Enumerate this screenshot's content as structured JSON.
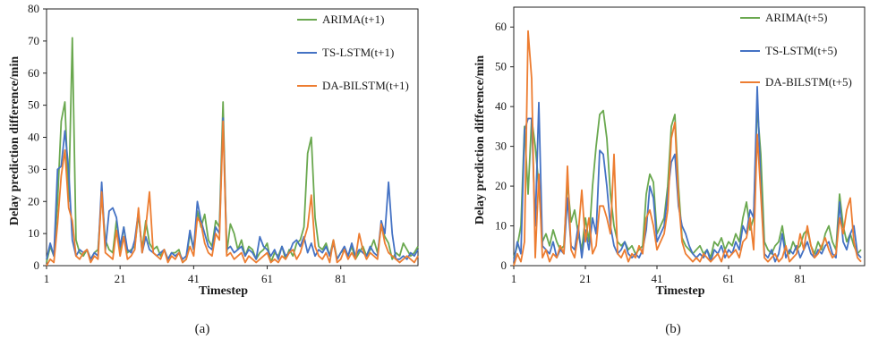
{
  "chart_data": [
    {
      "type": "line",
      "caption": "(a)",
      "xlabel": "Timestep",
      "ylabel": "Delay prediction difference/min",
      "xlim": [
        1,
        102
      ],
      "ylim": [
        0,
        80
      ],
      "xticks": [
        1,
        21,
        41,
        61,
        81
      ],
      "yticks": [
        0,
        10,
        20,
        30,
        40,
        50,
        60,
        70,
        80
      ],
      "legend_position": "top-right",
      "grid": false,
      "x_start": 1,
      "series": [
        {
          "name": "ARIMA(t+1)",
          "color": "#6aa84f",
          "values": [
            1,
            6,
            3,
            20,
            45,
            51,
            20,
            71,
            8,
            4,
            3,
            5,
            2,
            4,
            5,
            22,
            8,
            5,
            4,
            14,
            5,
            12,
            4,
            5,
            6,
            16,
            5,
            14,
            7,
            5,
            6,
            3,
            5,
            2,
            4,
            4,
            5,
            1,
            2,
            10,
            5,
            17,
            12,
            16,
            8,
            6,
            14,
            12,
            51,
            4,
            13,
            10,
            5,
            8,
            3,
            6,
            5,
            2,
            4,
            5,
            7,
            1,
            4,
            3,
            6,
            2,
            5,
            3,
            7,
            8,
            12,
            35,
            40,
            15,
            6,
            5,
            7,
            3,
            8,
            2,
            4,
            5,
            3,
            6,
            2,
            4,
            6,
            3,
            5,
            8,
            4,
            12,
            9,
            7,
            2,
            4,
            3,
            7,
            5,
            3,
            4,
            6
          ]
        },
        {
          "name": "TS-LSTM(t+1)",
          "color": "#4472c4",
          "values": [
            2,
            7,
            3,
            30,
            31,
            42,
            30,
            8,
            3,
            5,
            4,
            5,
            2,
            4,
            3,
            26,
            5,
            17,
            18,
            15,
            6,
            12,
            5,
            4,
            8,
            17,
            4,
            9,
            5,
            4,
            3,
            4,
            5,
            2,
            4,
            3,
            4,
            2,
            3,
            11,
            5,
            20,
            14,
            10,
            6,
            5,
            12,
            10,
            46,
            5,
            6,
            4,
            5,
            6,
            3,
            5,
            4,
            2,
            9,
            6,
            5,
            3,
            5,
            2,
            6,
            3,
            4,
            7,
            8,
            6,
            9,
            4,
            7,
            3,
            5,
            4,
            6,
            3,
            7,
            2,
            4,
            6,
            3,
            7,
            3,
            5,
            4,
            3,
            6,
            4,
            3,
            14,
            10,
            26,
            10,
            2,
            2,
            3,
            2,
            4,
            3,
            5
          ]
        },
        {
          "name": "DA-BILSTM(t+1)",
          "color": "#ed7d31",
          "values": [
            0,
            2,
            1,
            13,
            28,
            36,
            18,
            14,
            3,
            2,
            4,
            5,
            1,
            3,
            2,
            23,
            4,
            3,
            2,
            11,
            3,
            9,
            2,
            3,
            5,
            18,
            4,
            12,
            23,
            4,
            3,
            2,
            5,
            1,
            3,
            2,
            4,
            1,
            2,
            6,
            3,
            15,
            13,
            7,
            4,
            3,
            10,
            8,
            45,
            3,
            4,
            2,
            3,
            4,
            1,
            3,
            2,
            1,
            2,
            3,
            4,
            1,
            2,
            1,
            3,
            2,
            4,
            5,
            2,
            4,
            8,
            12,
            22,
            6,
            3,
            2,
            4,
            1,
            8,
            1,
            2,
            5,
            2,
            4,
            2,
            10,
            5,
            2,
            4,
            3,
            2,
            13,
            7,
            4,
            3,
            2,
            1,
            2,
            3,
            2,
            1,
            3
          ]
        }
      ]
    },
    {
      "type": "line",
      "caption": "(b)",
      "xlabel": "Timestep",
      "ylabel": "Delay prediction difference/min",
      "xlim": [
        1,
        99
      ],
      "ylim": [
        0,
        65
      ],
      "xticks": [
        1,
        21,
        41,
        61,
        81
      ],
      "yticks": [
        0,
        10,
        20,
        30,
        40,
        50,
        60
      ],
      "legend_position": "top-right",
      "grid": false,
      "x_start": 1,
      "series": [
        {
          "name": "ARIMA(t+5)",
          "color": "#6aa84f",
          "values": [
            2,
            5,
            10,
            35,
            18,
            37,
            30,
            20,
            6,
            8,
            5,
            9,
            6,
            4,
            5,
            21,
            11,
            14,
            8,
            4,
            12,
            6,
            20,
            30,
            38,
            39,
            32,
            18,
            10,
            6,
            5,
            6,
            4,
            5,
            3,
            4,
            5,
            18,
            23,
            21,
            8,
            10,
            12,
            20,
            35,
            38,
            20,
            7,
            5,
            4,
            3,
            4,
            5,
            3,
            4,
            2,
            6,
            5,
            7,
            4,
            6,
            5,
            8,
            6,
            12,
            16,
            9,
            12,
            40,
            28,
            6,
            4,
            3,
            5,
            6,
            10,
            4,
            3,
            6,
            4,
            5,
            8,
            9,
            5,
            3,
            6,
            4,
            8,
            10,
            6,
            4,
            18,
            10,
            6,
            8,
            5,
            3,
            4
          ]
        },
        {
          "name": "TS-LSTM(t+5)",
          "color": "#4472c4",
          "values": [
            1,
            6,
            3,
            34,
            37,
            37,
            10,
            41,
            5,
            4,
            3,
            6,
            2,
            4,
            3,
            17,
            5,
            4,
            10,
            2,
            9,
            4,
            12,
            8,
            29,
            28,
            20,
            10,
            5,
            3,
            4,
            6,
            3,
            2,
            3,
            2,
            4,
            9,
            20,
            17,
            6,
            8,
            10,
            18,
            26,
            28,
            15,
            10,
            8,
            5,
            3,
            2,
            3,
            2,
            4,
            1,
            4,
            3,
            5,
            2,
            4,
            3,
            6,
            4,
            10,
            8,
            14,
            12,
            45,
            20,
            3,
            2,
            4,
            1,
            3,
            8,
            2,
            4,
            3,
            5,
            2,
            4,
            6,
            3,
            2,
            4,
            3,
            5,
            6,
            3,
            2,
            16,
            6,
            4,
            8,
            10,
            3,
            2
          ]
        },
        {
          "name": "DA-BILSTM(t+5)",
          "color": "#ed7d31",
          "values": [
            0,
            3,
            1,
            6,
            59,
            47,
            2,
            23,
            2,
            4,
            1,
            3,
            2,
            5,
            3,
            25,
            4,
            2,
            8,
            19,
            6,
            12,
            3,
            5,
            15,
            15,
            12,
            8,
            28,
            3,
            2,
            4,
            1,
            3,
            2,
            5,
            3,
            12,
            14,
            10,
            4,
            6,
            8,
            14,
            32,
            36,
            17,
            6,
            3,
            2,
            1,
            2,
            1,
            3,
            2,
            1,
            2,
            3,
            1,
            4,
            2,
            3,
            4,
            2,
            6,
            7,
            12,
            4,
            33,
            18,
            2,
            1,
            2,
            3,
            1,
            2,
            5,
            1,
            2,
            3,
            8,
            4,
            10,
            5,
            2,
            3,
            5,
            7,
            4,
            2,
            3,
            12,
            8,
            14,
            17,
            6,
            2,
            1
          ]
        }
      ]
    }
  ]
}
